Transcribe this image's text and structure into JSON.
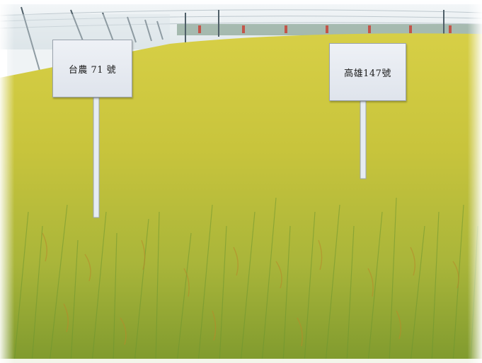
{
  "scene": {
    "sky_color": "#e8eef2",
    "field_color": "#c9c23a",
    "stalk_color": "#5c8a2a",
    "net_color": "#dfe6ea"
  },
  "signs": {
    "left": {
      "label": "台農 71 號"
    },
    "right": {
      "label": "高雄147號"
    }
  }
}
